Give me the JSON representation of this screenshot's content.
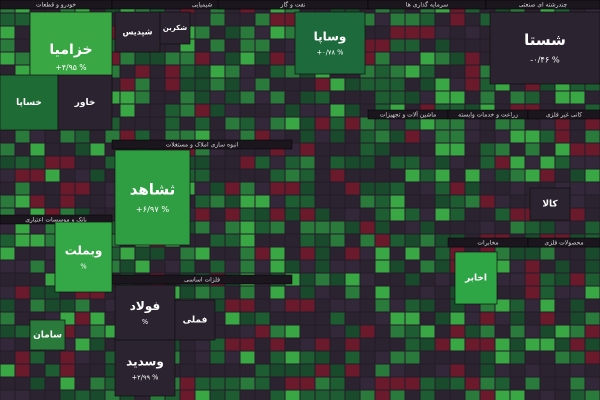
{
  "sectors": [
    {
      "name": "خودرو و قطعات"
    },
    {
      "name": "شیمیایی"
    },
    {
      "name": "نفت و گاز"
    },
    {
      "name": "سرمایه گذاری ها"
    },
    {
      "name": "چندرشته ای صنعتی"
    },
    {
      "name": "انبوه سازی املاک و مستغلات"
    },
    {
      "name": "ماشین آلات و تجهیزات"
    },
    {
      "name": "زراعت و خدمات وابسته"
    },
    {
      "name": "کانی غیر فلزی"
    },
    {
      "name": "بانک و موسسات اعتباری"
    },
    {
      "name": "فلزات اساسی"
    },
    {
      "name": "مخابرات"
    },
    {
      "name": "محصولات فلزی"
    }
  ],
  "tiles": [
    {
      "name": "خزامیا",
      "change": "+۴/۹۵ %"
    },
    {
      "name": "خساپا"
    },
    {
      "name": "خاور"
    },
    {
      "name": "شپدیس"
    },
    {
      "name": "شکربن"
    },
    {
      "name": "وساپا",
      "change": "+۰/۷۸ %"
    },
    {
      "name": "شستا",
      "change": "-۰/۴۶ %"
    },
    {
      "name": "ثشاهد",
      "change": "+۶/۹۷ %"
    },
    {
      "name": "وبملت",
      "change": "%"
    },
    {
      "name": "فولاد",
      "change": "%"
    },
    {
      "name": "وسدید",
      "change": "+۲/۹۹ %"
    },
    {
      "name": "اخابر"
    },
    {
      "name": "کالا"
    },
    {
      "name": "سامان"
    },
    {
      "name": "فملی"
    }
  ]
}
